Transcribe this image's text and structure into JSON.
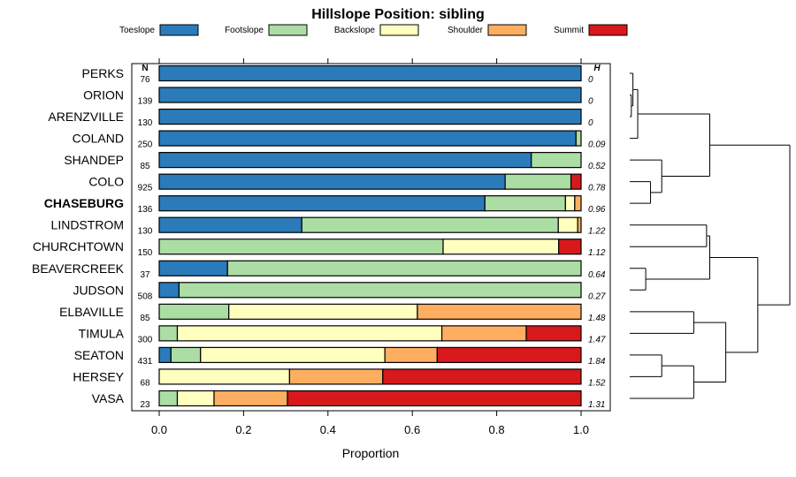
{
  "chart_data": {
    "type": "bar",
    "orientation": "horizontal",
    "stacked": true,
    "title": "Hillslope Position: sibling",
    "xlabel": "Proportion",
    "ylabel": "",
    "xlim": [
      0,
      1
    ],
    "x_ticks": [
      "0.0",
      "0.2",
      "0.4",
      "0.6",
      "0.8",
      "1.0"
    ],
    "x_tick_values": [
      0,
      0.2,
      0.4,
      0.6,
      0.8,
      1.0
    ],
    "n_header": "N",
    "h_header": "H",
    "highlight": "CHASEBURG",
    "legend": [
      {
        "name": "Toeslope",
        "color": "#2b7bba"
      },
      {
        "name": "Footslope",
        "color": "#abdda4"
      },
      {
        "name": "Backslope",
        "color": "#ffffbf"
      },
      {
        "name": "Shoulder",
        "color": "#fdae61"
      },
      {
        "name": "Summit",
        "color": "#d7191c"
      }
    ],
    "categories": [
      "PERKS",
      "ORION",
      "ARENZVILLE",
      "COLAND",
      "SHANDEP",
      "COLO",
      "CHASEBURG",
      "LINDSTROM",
      "CHURCHTOWN",
      "BEAVERCREEK",
      "JUDSON",
      "ELBAVILLE",
      "TIMULA",
      "SEATON",
      "HERSEY",
      "VASA"
    ],
    "n": [
      "76",
      "139",
      "130",
      "250",
      "85",
      "925",
      "136",
      "130",
      "150",
      "37",
      "508",
      "85",
      "300",
      "431",
      "68",
      "23"
    ],
    "h": [
      "0",
      "0",
      "0",
      "0.09",
      "0.52",
      "0.78",
      "0.96",
      "1.22",
      "1.12",
      "0.64",
      "0.27",
      "1.48",
      "1.47",
      "1.84",
      "1.52",
      "1.31"
    ],
    "series": [
      {
        "name": "Toeslope",
        "values": [
          1.0,
          1.0,
          1.0,
          0.988,
          0.882,
          0.82,
          0.772,
          0.338,
          0,
          0.162,
          0.047,
          0,
          0,
          0.028,
          0,
          0
        ]
      },
      {
        "name": "Footslope",
        "values": [
          0,
          0,
          0,
          0.012,
          0.118,
          0.156,
          0.191,
          0.608,
          0.673,
          0.838,
          0.953,
          0.165,
          0.043,
          0.07,
          0,
          0.043
        ]
      },
      {
        "name": "Backslope",
        "values": [
          0,
          0,
          0,
          0,
          0,
          0,
          0.022,
          0.046,
          0.274,
          0,
          0,
          0.447,
          0.627,
          0.437,
          0.309,
          0.087
        ]
      },
      {
        "name": "Shoulder",
        "values": [
          0,
          0,
          0,
          0,
          0,
          0,
          0.015,
          0.008,
          0,
          0,
          0,
          0.388,
          0.2,
          0.124,
          0.221,
          0.174
        ]
      },
      {
        "name": "Summit",
        "values": [
          0,
          0,
          0,
          0,
          0,
          0.024,
          0,
          0,
          0.053,
          0,
          0,
          0,
          0.13,
          0.341,
          0.47,
          0.696
        ]
      }
    ],
    "dendrogram": {
      "method": "hierarchical clustering of hillslope position proportions",
      "leaf_order": [
        "PERKS",
        "ORION",
        "ARENZVILLE",
        "COLAND",
        "SHANDEP",
        "COLO",
        "CHASEBURG",
        "LINDSTROM",
        "CHURCHTOWN",
        "BEAVERCREEK",
        "JUDSON",
        "ELBAVILLE",
        "TIMULA",
        "SEATON",
        "HERSEY",
        "VASA"
      ],
      "merges": [
        [
          1,
          2,
          0.01
        ],
        [
          0,
          16,
          0.02
        ],
        [
          17,
          3,
          0.05
        ],
        [
          5,
          6,
          0.13
        ],
        [
          4,
          19,
          0.2
        ],
        [
          18,
          20,
          0.5
        ],
        [
          7,
          8,
          0.48
        ],
        [
          9,
          10,
          0.1
        ],
        [
          22,
          23,
          0.5
        ],
        [
          11,
          12,
          0.4
        ],
        [
          13,
          14,
          0.2
        ],
        [
          26,
          15,
          0.4
        ],
        [
          25,
          27,
          0.6
        ],
        [
          24,
          28,
          0.8
        ],
        [
          21,
          29,
          1.0
        ]
      ]
    }
  }
}
